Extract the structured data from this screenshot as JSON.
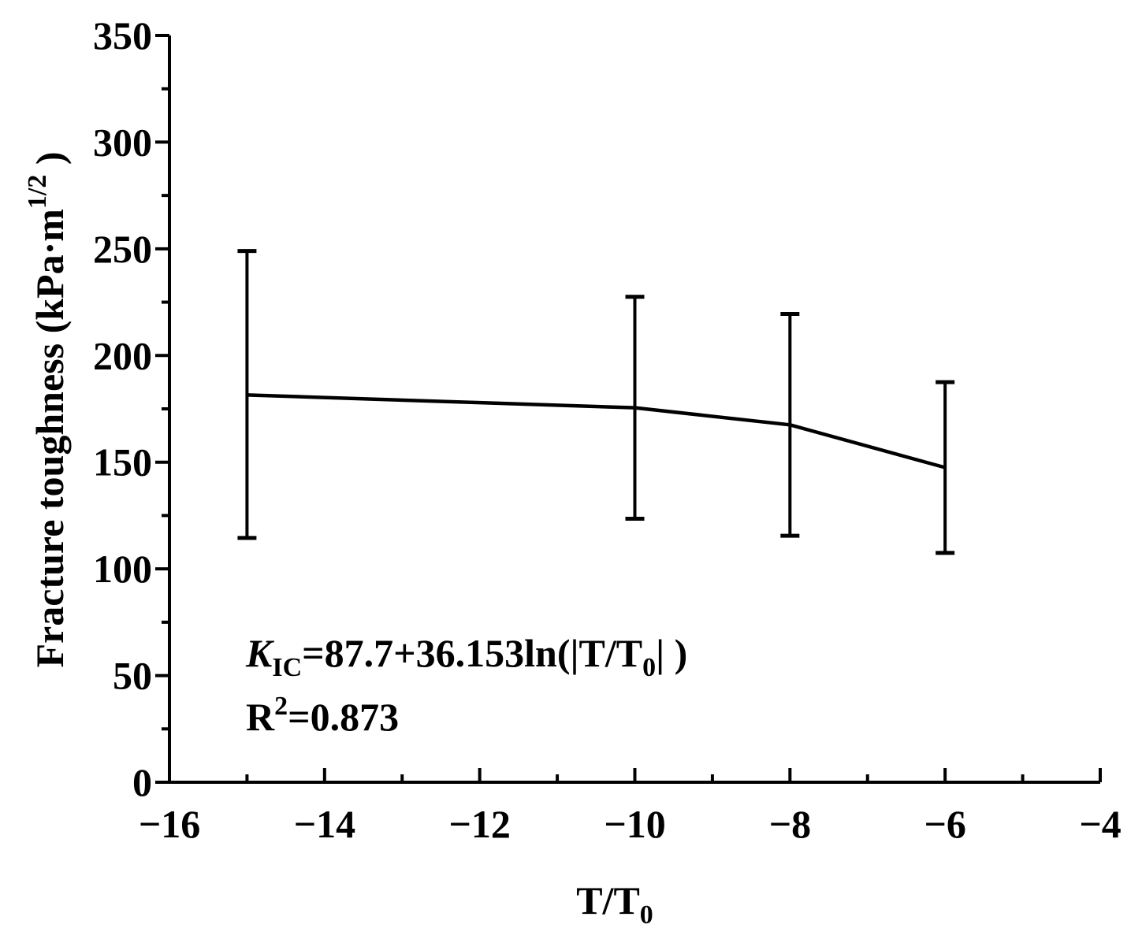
{
  "chart_data": {
    "type": "line",
    "title": "",
    "x": [
      -15,
      -10,
      -8,
      -6
    ],
    "series": [
      {
        "values": [
          181.5,
          175.5,
          167.5,
          147.5
        ],
        "error_upper": [
          249,
          227.5,
          219.5,
          187.5
        ],
        "error_lower": [
          114.5,
          123.5,
          115.5,
          107.5
        ]
      }
    ],
    "xlim": [
      -16,
      -4
    ],
    "ylim": [
      0,
      350
    ],
    "x_ticks": [
      -16,
      -14,
      -12,
      -10,
      -8,
      -6,
      -4
    ],
    "x_tick_labels": [
      "−16",
      "−14",
      "−12",
      "−10",
      "−8",
      "−6",
      "−4"
    ],
    "y_ticks": [
      0,
      50,
      100,
      150,
      200,
      250,
      300,
      350
    ],
    "y_tick_labels": [
      "0",
      "50",
      "100",
      "150",
      "200",
      "250",
      "300",
      "350"
    ],
    "xlabel": {
      "main": "T/T",
      "subscript": "0"
    },
    "ylabel": {
      "main": "Fracture toughness (kPa·m",
      "superscript": "1/2",
      "close": " )"
    },
    "grid": false,
    "line_color": "#000000",
    "annotations": {
      "equation": {
        "k": "K",
        "k_sub": "IC",
        "body": "=87.7+36.153ln(|T/T",
        "t_sub": "0",
        "tail": "| )"
      },
      "r2": {
        "r": "R",
        "r_sup": "2",
        "value": "=0.873"
      }
    }
  }
}
